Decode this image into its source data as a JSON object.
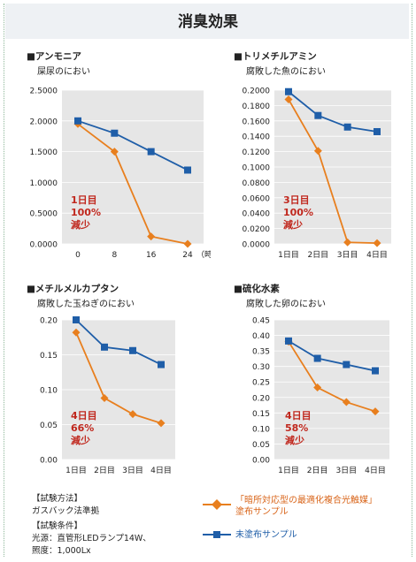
{
  "page": {
    "title": "消臭効果"
  },
  "colors": {
    "orange": "#e87f1e",
    "blue": "#1f5ea8",
    "annotation": "#c0271d",
    "plot_bg": "#e6e6e6"
  },
  "footer": {
    "method_heading": "【試験方法】",
    "method_text": "ガスバック法準拠",
    "conditions_heading": "【試験条件】",
    "conditions_line1": "光源：直管形LEDランプ14W、",
    "conditions_line2": "照度：1,000Lx"
  },
  "legend": {
    "coated_label_line1": "「暗所対応型の最適化複合光触媒」",
    "coated_label_line2": "塗布サンプル",
    "uncoated_label": "未塗布サンプル"
  },
  "chart_data": [
    {
      "type": "line",
      "title": "■アンモニア",
      "subtitle": "屎尿のにおい",
      "x": [
        "0",
        "8",
        "16",
        "24"
      ],
      "x_unit_label": "（時間）",
      "ylim": [
        0,
        2.5
      ],
      "y_ticks": [
        "0.0000",
        "0.5000",
        "1.0000",
        "1.5000",
        "2.0000",
        "2.5000"
      ],
      "series": [
        {
          "key": "coated",
          "values": [
            1.95,
            1.5,
            0.12,
            0.0
          ]
        },
        {
          "key": "uncoated",
          "values": [
            2.0,
            1.8,
            1.5,
            1.2
          ]
        }
      ],
      "annotation": [
        "1日目",
        "100%",
        "減少"
      ]
    },
    {
      "type": "line",
      "title": "■トリメチルアミン",
      "subtitle": "腐敗した魚のにおい",
      "x": [
        "1日目",
        "2日目",
        "3日目",
        "4日目"
      ],
      "x_unit_label": "",
      "ylim": [
        0,
        0.2
      ],
      "y_ticks": [
        "0.0000",
        "0.0200",
        "0.0400",
        "0.0600",
        "0.0800",
        "0.1000",
        "0.1200",
        "0.1400",
        "0.1600",
        "0.1800",
        "0.2000"
      ],
      "series": [
        {
          "key": "coated",
          "values": [
            0.188,
            0.121,
            0.002,
            0.001
          ]
        },
        {
          "key": "uncoated",
          "values": [
            0.198,
            0.167,
            0.152,
            0.146
          ]
        }
      ],
      "annotation": [
        "3日目",
        "100%",
        "減少"
      ]
    },
    {
      "type": "line",
      "title": "■メチルメルカプタン",
      "subtitle": "腐敗した玉ねぎのにおい",
      "x": [
        "1日目",
        "2日目",
        "3日目",
        "4日目"
      ],
      "x_unit_label": "",
      "ylim": [
        0,
        0.2
      ],
      "y_ticks": [
        "0.00",
        "0.05",
        "0.10",
        "0.15",
        "0.20"
      ],
      "series": [
        {
          "key": "coated",
          "values": [
            0.182,
            0.088,
            0.065,
            0.052
          ]
        },
        {
          "key": "uncoated",
          "values": [
            0.2,
            0.161,
            0.156,
            0.136
          ]
        }
      ],
      "annotation": [
        "4日目",
        "66%",
        "減少"
      ]
    },
    {
      "type": "line",
      "title": "■硫化水素",
      "subtitle": "腐敗した卵のにおい",
      "x": [
        "1日目",
        "2日目",
        "3日目",
        "4日目"
      ],
      "x_unit_label": "",
      "ylim": [
        0,
        0.45
      ],
      "y_ticks": [
        "0.00",
        "0.05",
        "0.10",
        "0.15",
        "0.20",
        "0.25",
        "0.30",
        "0.35",
        "0.40",
        "0.45"
      ],
      "series": [
        {
          "key": "coated",
          "values": [
            0.38,
            0.232,
            0.185,
            0.155
          ]
        },
        {
          "key": "uncoated",
          "values": [
            0.382,
            0.326,
            0.306,
            0.286
          ]
        }
      ],
      "annotation": [
        "4日目",
        "58%",
        "減少"
      ]
    }
  ]
}
